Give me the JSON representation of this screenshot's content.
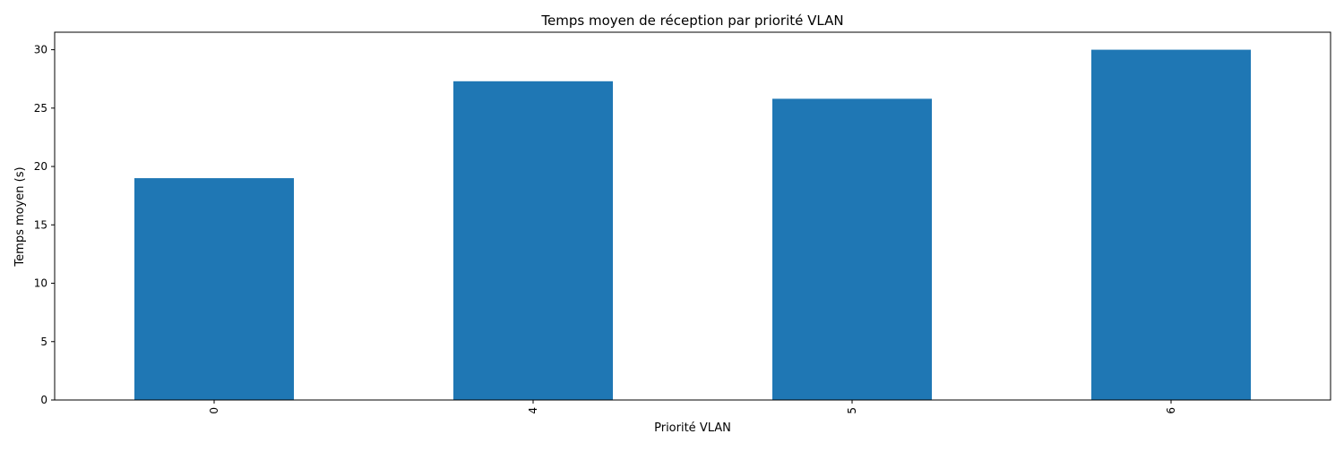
{
  "chart_data": {
    "type": "bar",
    "title": "Temps moyen de réception par priorité VLAN",
    "xlabel": "Priorité VLAN",
    "ylabel": "Temps moyen (s)",
    "categories": [
      "0",
      "4",
      "5",
      "6"
    ],
    "values": [
      19.0,
      27.3,
      25.8,
      30.0
    ],
    "ylim": [
      0,
      31.5
    ],
    "yticks": [
      0,
      5,
      10,
      15,
      20,
      25,
      30
    ],
    "grid": false,
    "legend": "none",
    "bar_color": "#1f77b4"
  }
}
